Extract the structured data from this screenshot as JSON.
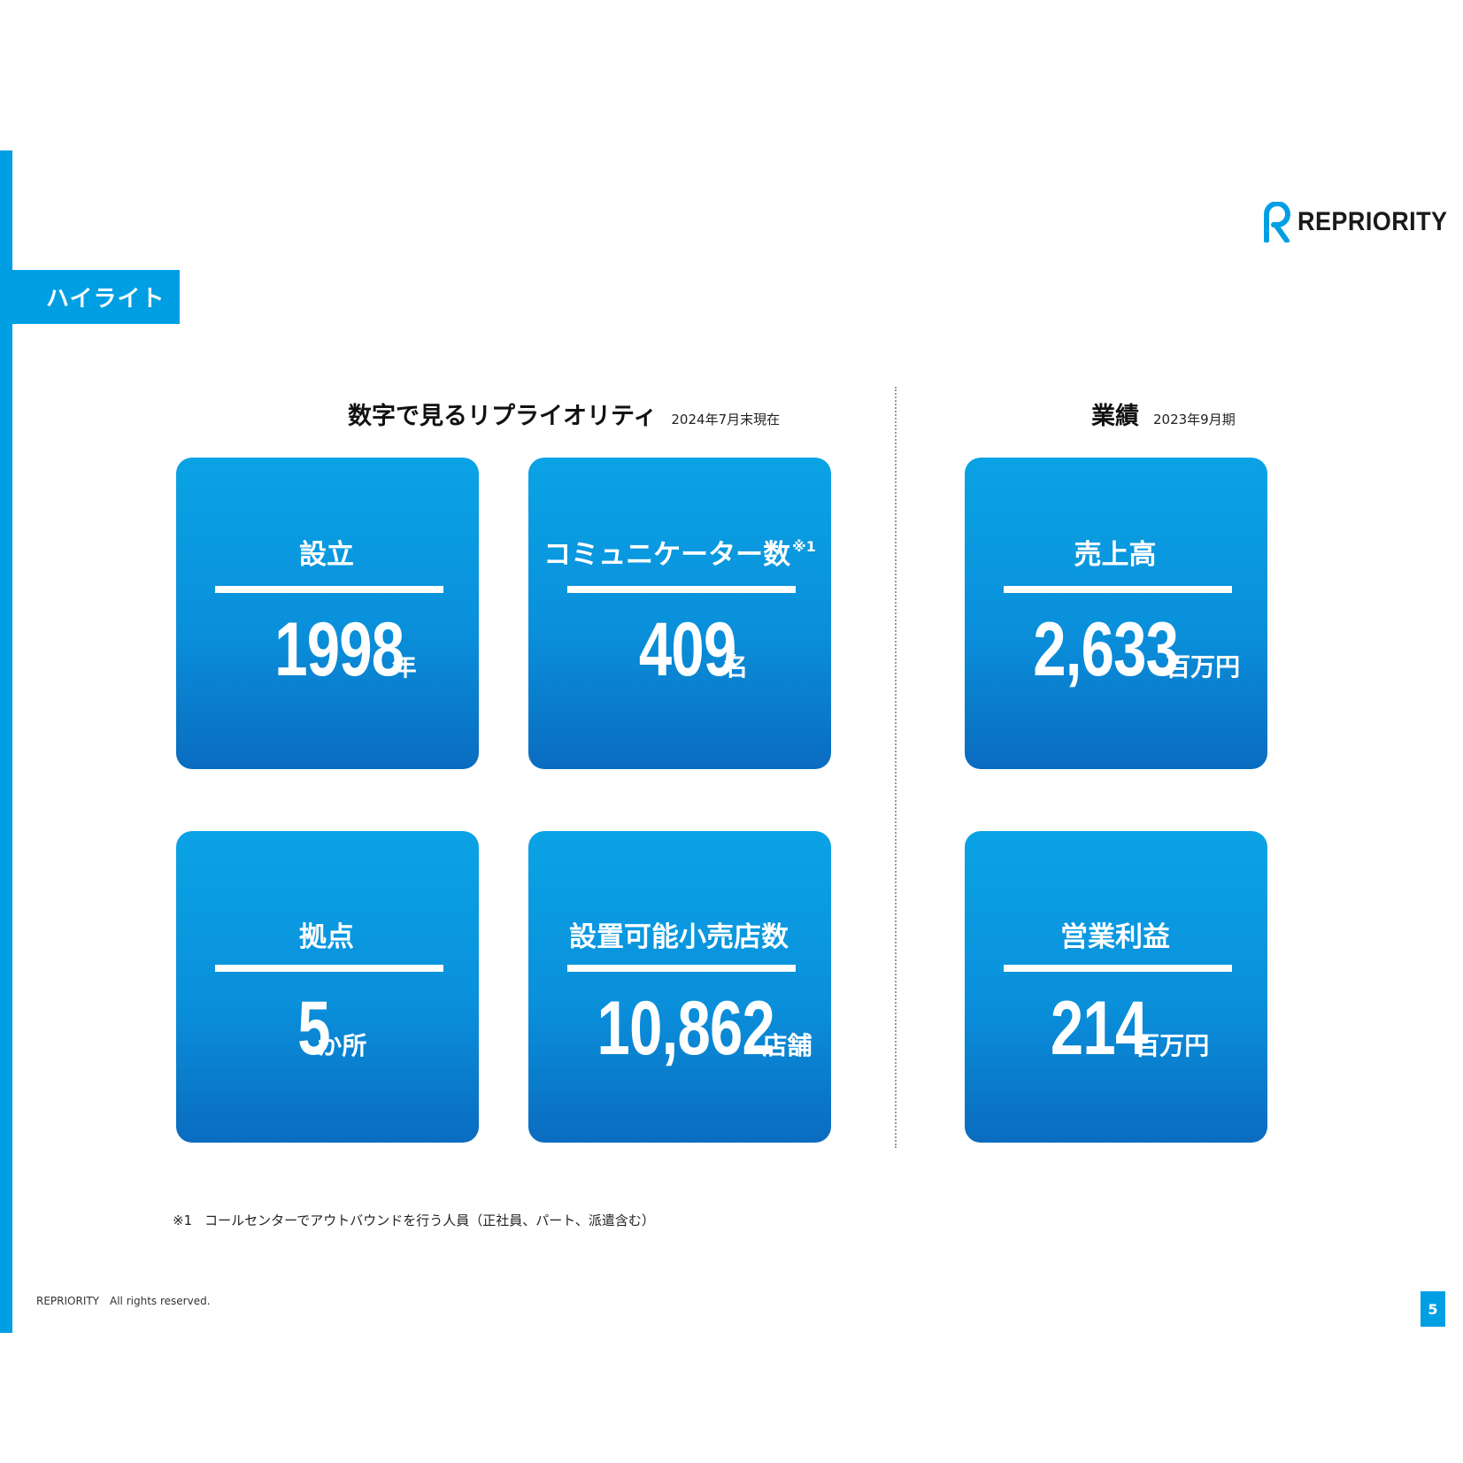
{
  "section_title": "ハイライト",
  "logo": {
    "text": "REPRIORITY",
    "icon": "repriority-r-logo-icon",
    "color": "#009fe3"
  },
  "left_heading": {
    "title": "数字で見るリプライオリティ",
    "note": "2024年7月末現在"
  },
  "right_heading": {
    "title": "業績",
    "note": "2023年9月期"
  },
  "cards": [
    {
      "label": "設立",
      "sup": "",
      "value": "1998",
      "unit": "年"
    },
    {
      "label": "コミュニケーター数",
      "sup": "※1",
      "value": "409",
      "unit": "名"
    },
    {
      "label": "拠点",
      "sup": "",
      "value": "5",
      "unit": "か所"
    },
    {
      "label": "設置可能小売店数",
      "sup": "",
      "value": "10,862",
      "unit": "店舗"
    },
    {
      "label": "売上高",
      "sup": "",
      "value": "2,633",
      "unit": "百万円"
    },
    {
      "label": "営業利益",
      "sup": "",
      "value": "214",
      "unit": "百万円"
    }
  ],
  "footnote": {
    "mark": "※1",
    "text": "コールセンターでアウトバウンドを行う人員（正社員、パート、派遣含む）"
  },
  "copyright": "REPRIORITY　All rights reserved.",
  "page_number": "5",
  "colors": {
    "accent": "#009fe3",
    "card_top": "#0aa3e5",
    "card_bottom": "#0a6cc0"
  }
}
